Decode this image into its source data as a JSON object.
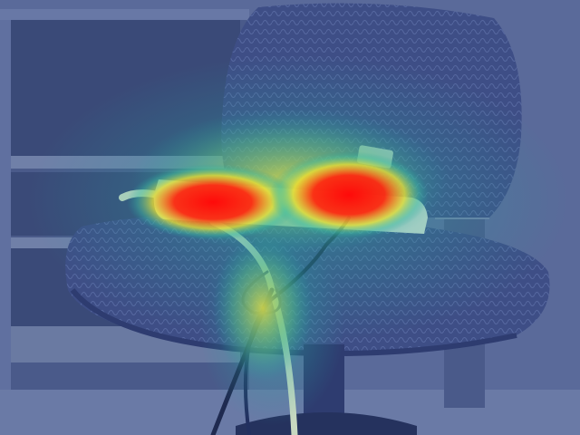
{
  "scene": {
    "subject": "office-chair-with-power-strip",
    "overlay": "attention-heatmap",
    "palette": {
      "background_wall": "#5a6a9a",
      "shelf": "#4a5a8a",
      "shelf_edge": "#7080a8",
      "chair_fabric": "#3e4e86",
      "chair_fabric_dark": "#2e3c70",
      "cable": "#c8d8c0",
      "heat_low": "#20a0a0",
      "heat_mid": "#e0e040",
      "heat_high": "#ff1010"
    }
  }
}
